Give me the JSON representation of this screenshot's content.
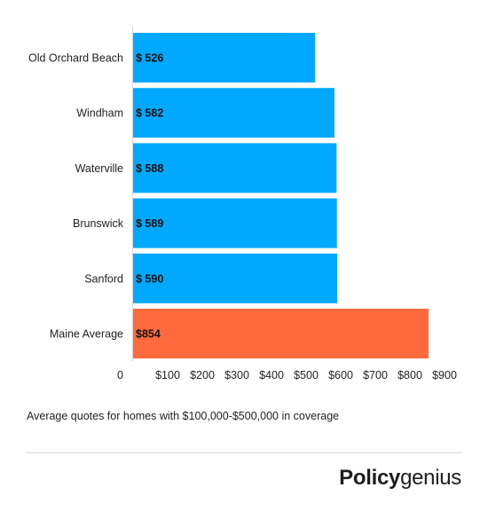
{
  "chart_data": {
    "type": "bar",
    "orientation": "horizontal",
    "categories": [
      "Old Orchard Beach",
      "Windham",
      "Waterville",
      "Brunswick",
      "Sanford",
      "Maine Average"
    ],
    "values": [
      526,
      582,
      588,
      589,
      590,
      854
    ],
    "data_labels": [
      "$ 526",
      "$ 582",
      "$ 588",
      "$ 589",
      "$ 590",
      "$854"
    ],
    "colors": [
      "#00a8ff",
      "#00a8ff",
      "#00a8ff",
      "#00a8ff",
      "#00a8ff",
      "#ff6a3d"
    ],
    "xlim": [
      0,
      900
    ],
    "xticks": [
      0,
      100,
      200,
      300,
      400,
      500,
      600,
      700,
      800,
      900
    ],
    "xtick_labels": [
      "0",
      "$100",
      "$200",
      "$300",
      "$400",
      "$500",
      "$600",
      "$700",
      "$800",
      "$900"
    ],
    "grid": false,
    "legend": false
  },
  "caption": "Average quotes for homes with $100,000-$500,000 in coverage",
  "logo": {
    "part1": "Policy",
    "part2": "genius"
  }
}
